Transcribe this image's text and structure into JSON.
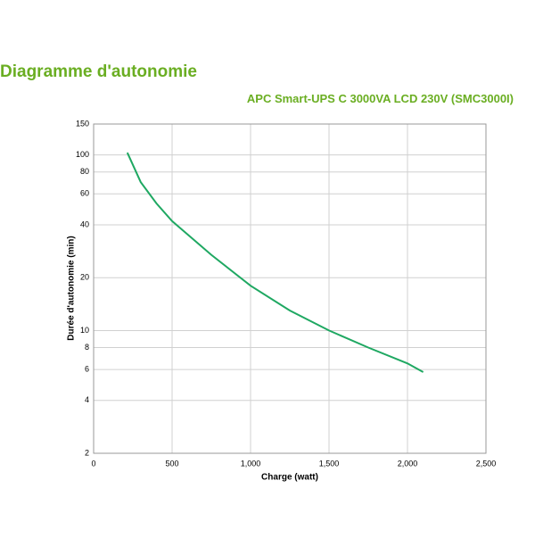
{
  "chart_data": {
    "type": "line",
    "title": "Diagramme d'autonomie",
    "subtitle": "APC Smart-UPS C 3000VA LCD 230V (SMC3000I)",
    "x_label": "Charge (watt)",
    "y_label": "Durée d'autonomie (min)",
    "x": [
      215,
      300,
      400,
      500,
      750,
      1000,
      1250,
      1500,
      1750,
      2000,
      2100
    ],
    "series": [
      {
        "color": "#1fa862",
        "values": [
          103,
          70,
          53,
          42,
          27,
          18,
          13,
          10,
          8,
          6.5,
          5.8
        ]
      }
    ],
    "xlim": [
      0,
      2500
    ],
    "xticks": [
      0,
      500,
      {
        "value": 1000,
        "label": "1,000"
      },
      {
        "value": 1500,
        "label": "1,500"
      },
      {
        "value": 2000,
        "label": "2,000"
      },
      {
        "value": 2500,
        "label": "2,500"
      }
    ],
    "ylim": [
      2,
      150
    ],
    "yticks": [
      2,
      4,
      6,
      8,
      10,
      20,
      40,
      60,
      80,
      100,
      150
    ],
    "y_log": true,
    "grid": true,
    "title_color": "#6aae22"
  }
}
